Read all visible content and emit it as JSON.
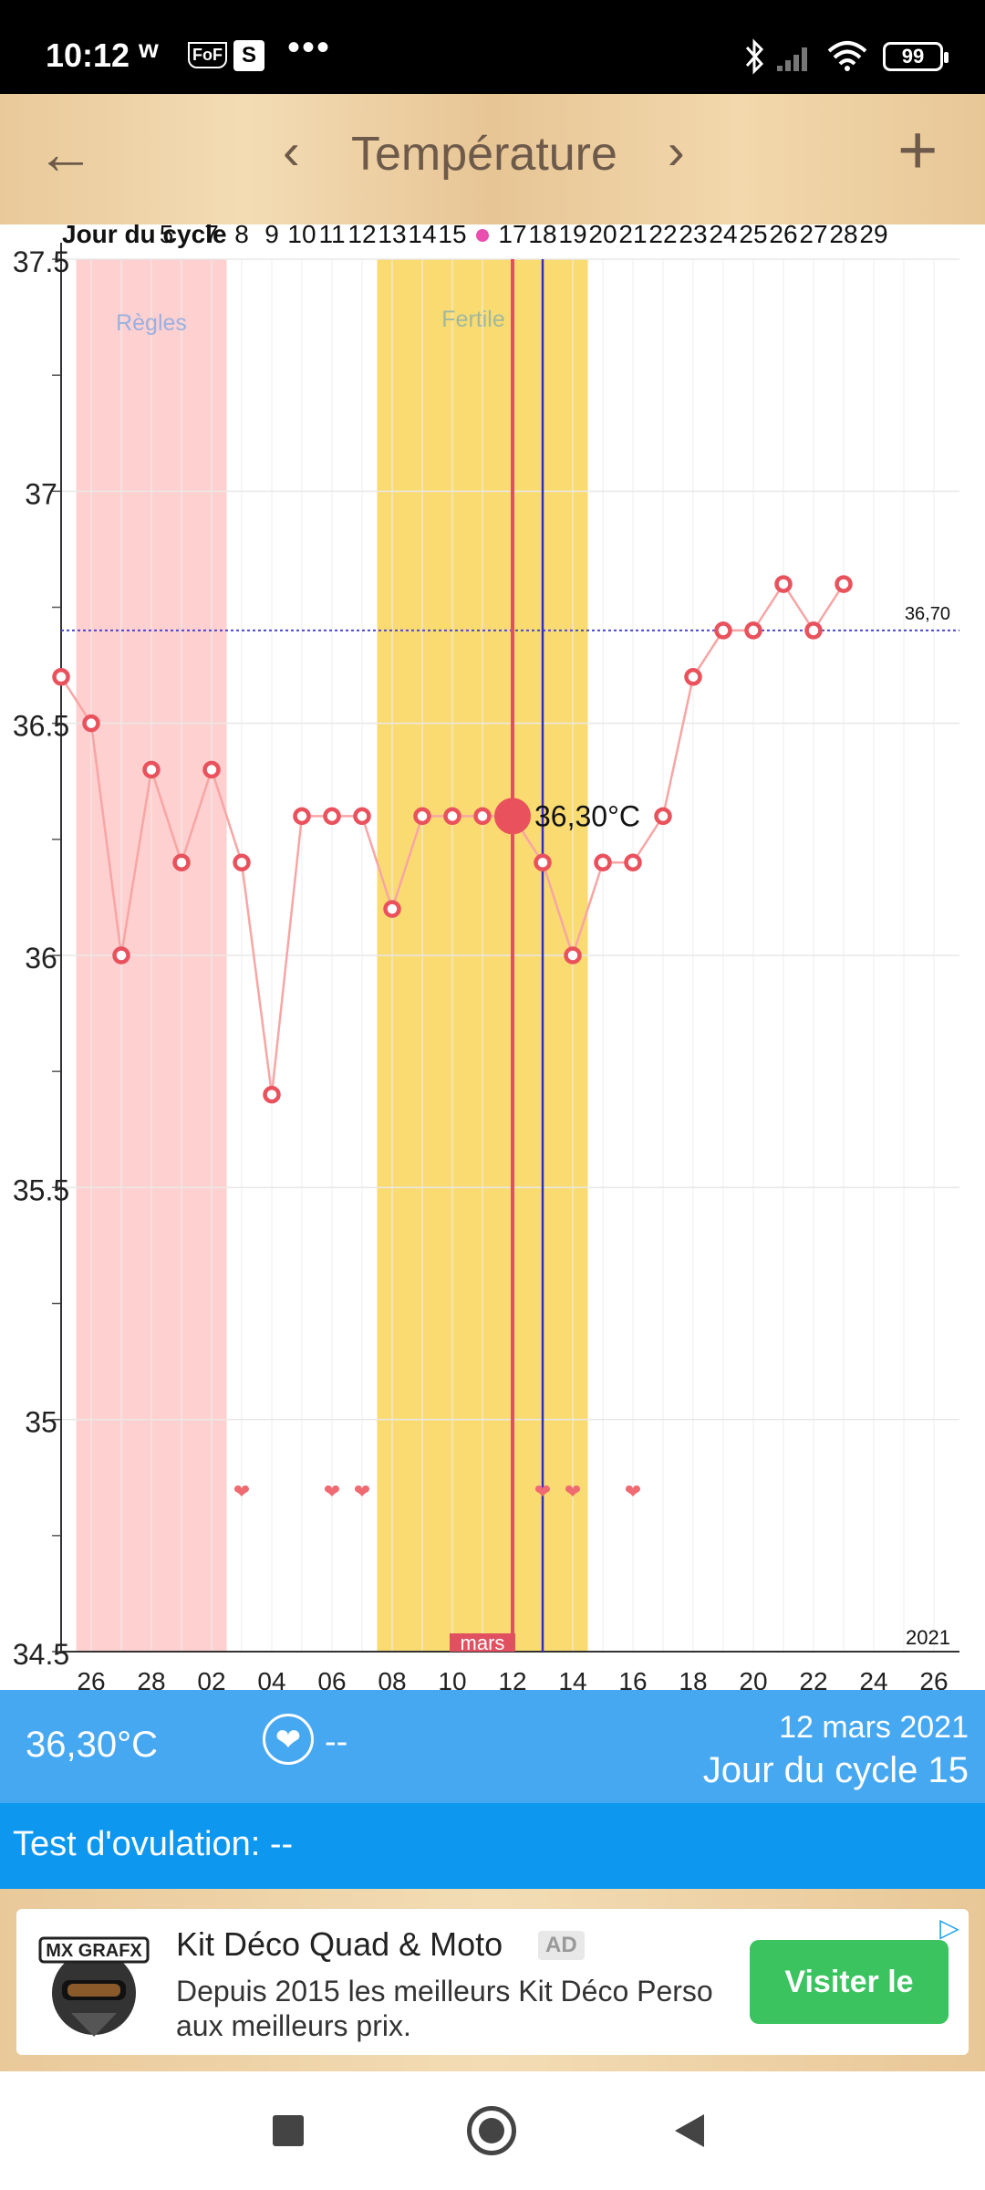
{
  "status_bar": {
    "time": "10:12",
    "icons": [
      "w-app-icon",
      "fof-shield-icon",
      "s-app-icon",
      "more-notifications-icon",
      "bluetooth-icon",
      "signal-icon",
      "wifi-icon",
      "battery-icon"
    ],
    "w_glyph": "w",
    "fof_glyph": "FoF",
    "s_glyph": "S",
    "more_glyph": "•••",
    "battery": "99"
  },
  "toolbar": {
    "back_icon": "←",
    "prev_icon": "‹",
    "title": "Température",
    "next_icon": "›",
    "add_icon": "+"
  },
  "chart_data": {
    "type": "line",
    "top_axis_label": "Jour du cycle",
    "top_ticks": [
      "5",
      "7",
      "8",
      "9",
      "10",
      "11",
      "12",
      "13",
      "14",
      "15",
      "",
      "17",
      "18",
      "19",
      "20",
      "21",
      "22",
      "23",
      "24",
      "25",
      "26",
      "27",
      "28",
      "29"
    ],
    "x_ticks": [
      "26",
      "28",
      "02",
      "04",
      "06",
      "08",
      "10",
      "12",
      "14",
      "16",
      "18",
      "20",
      "22",
      "24",
      "26"
    ],
    "month_label": "mars",
    "year_label": "2021",
    "ylim": [
      34.5,
      37.5
    ],
    "y_ticks": [
      "37.5",
      "37",
      "36.5",
      "36",
      "35.5",
      "35",
      "34.5"
    ],
    "y_tick_values": [
      37.5,
      37,
      36.5,
      36,
      35.5,
      35,
      34.5
    ],
    "bands": [
      {
        "label": "Règles",
        "color": "#ffd0d0",
        "x_start": 0.5,
        "x_end": 5.5
      },
      {
        "label": "Fertile",
        "color": "#fadb71",
        "x_start": 10.5,
        "x_end": 17.5
      }
    ],
    "coverline": {
      "value": 36.7,
      "label": "36,70"
    },
    "series": [
      {
        "values": [
          36.6,
          36.5,
          36.0,
          36.4,
          36.2,
          36.4,
          36.2,
          35.7,
          36.3,
          36.3,
          36.3,
          36.1,
          36.3,
          36.3,
          36.3,
          36.3,
          36.2,
          36.0,
          36.2,
          36.2,
          36.3,
          36.6,
          36.7,
          36.7,
          36.8,
          36.7,
          36.8
        ]
      }
    ],
    "selected": {
      "index": 15,
      "label": "36,30°C"
    },
    "selected_line_index": 15,
    "ovulation_line_index": 16,
    "hearts": [
      6,
      9,
      10,
      16,
      17,
      19
    ],
    "grid": true,
    "colors": {
      "line": "#f8a5a5",
      "point": "#e9525d",
      "selected_line": "#e05060",
      "ovulation_line": "#2f2fd0",
      "coverline": "#4a4ad0"
    }
  },
  "info": {
    "temperature": "36,30°C",
    "heart_icon": "❤",
    "intercourse_value": "--",
    "date": "12 mars 2021",
    "cycle_day": "Jour du cycle 15"
  },
  "ovulation_test": {
    "label": "Test d'ovulation: --"
  },
  "ad": {
    "logo_text": "MX GRAFX",
    "title": "Kit Déco Quad & Moto",
    "badge": "AD",
    "description_line1": "Depuis 2015 les meilleurs Kit Déco Perso",
    "description_line2": "aux meilleurs prix.",
    "button": "Visiter le",
    "adchoices_icon": "▷"
  }
}
